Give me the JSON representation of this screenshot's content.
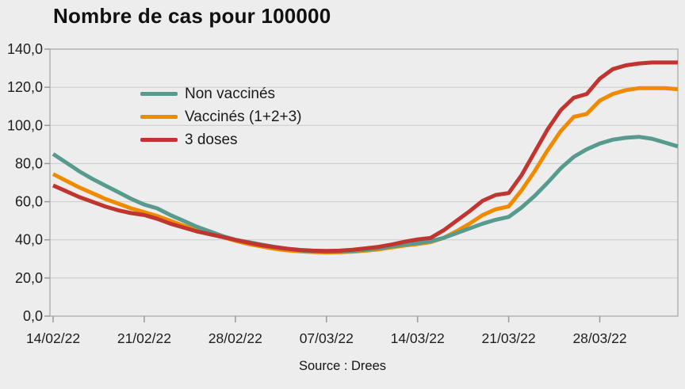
{
  "title": "Nombre de cas pour 100000",
  "source": "Source : Drees",
  "chart_data": {
    "type": "line",
    "title": "Nombre de cas pour 100000",
    "ylim": [
      0,
      140
    ],
    "y_tick_step": 20,
    "y_tick_labels": [
      "0,0",
      "20,0",
      "40,0",
      "60,0",
      "80,0",
      "100,0",
      "120,0",
      "140,0"
    ],
    "x_tick_labels": [
      "14/02/22",
      "21/02/22",
      "28/02/22",
      "07/03/22",
      "14/03/22",
      "21/03/22",
      "28/03/22"
    ],
    "x_tick_days": [
      0,
      7,
      14,
      21,
      28,
      35,
      42
    ],
    "x_range_days": [
      0,
      48
    ],
    "x_unit": "day (daily points, weekly labeled ticks)",
    "grid": "horizontal",
    "legend_position": "top-left-inside",
    "source": "Source : Drees",
    "series": [
      {
        "name": "Non vaccinés",
        "color": "#579a8e",
        "values": [
          85,
          80.5,
          76,
          72,
          68.5,
          65,
          61.5,
          58.5,
          56.5,
          53,
          50,
          47,
          44.5,
          42,
          40,
          38.8,
          37.5,
          36.3,
          35.3,
          34.5,
          34,
          33.8,
          33.9,
          34.2,
          34.8,
          35.6,
          36.5,
          37.5,
          38.3,
          39.3,
          41,
          43.5,
          46,
          48.5,
          50.5,
          52,
          57,
          63,
          70,
          77.5,
          83.5,
          87.5,
          90.5,
          92.5,
          93.5,
          94,
          93,
          91,
          89
        ]
      },
      {
        "name": "Vaccinés (1+2+3)",
        "color": "#f08b00",
        "values": [
          74.5,
          71,
          67.5,
          64.5,
          61.5,
          59,
          56.5,
          54.5,
          52.5,
          50,
          47.5,
          45.5,
          43.5,
          41.5,
          39.5,
          37.8,
          36.5,
          35.3,
          34.5,
          34,
          33.6,
          33.4,
          33.5,
          33.8,
          34.3,
          35,
          36,
          37,
          37.8,
          38.8,
          41,
          44.5,
          48.5,
          53,
          56,
          57.5,
          66,
          76,
          87,
          97,
          104.5,
          106,
          113,
          116.5,
          118.5,
          119.5,
          119.5,
          119.5,
          119
        ]
      },
      {
        "name": "3 doses",
        "color": "#c0352f",
        "values": [
          68.5,
          65.5,
          62.5,
          60,
          57.5,
          55.5,
          54,
          53,
          51,
          48.5,
          46.5,
          44.5,
          43,
          41.5,
          40,
          38.5,
          37.2,
          36.2,
          35.3,
          34.7,
          34.3,
          34.2,
          34.3,
          34.8,
          35.5,
          36.3,
          37.5,
          39,
          40.2,
          41,
          45,
          50,
          55,
          60.5,
          63.5,
          64.5,
          74,
          86,
          98,
          108,
          114.5,
          116.5,
          124.5,
          129.5,
          131.5,
          132.5,
          133,
          133,
          133
        ]
      }
    ],
    "style": {
      "background": "#ededed",
      "gridline_color": "#c9c9c9",
      "frame_color": "#b3b3b3",
      "tick_color": "#9a9a9a",
      "label_color": "#1e1e1e",
      "line_width": 5
    }
  }
}
